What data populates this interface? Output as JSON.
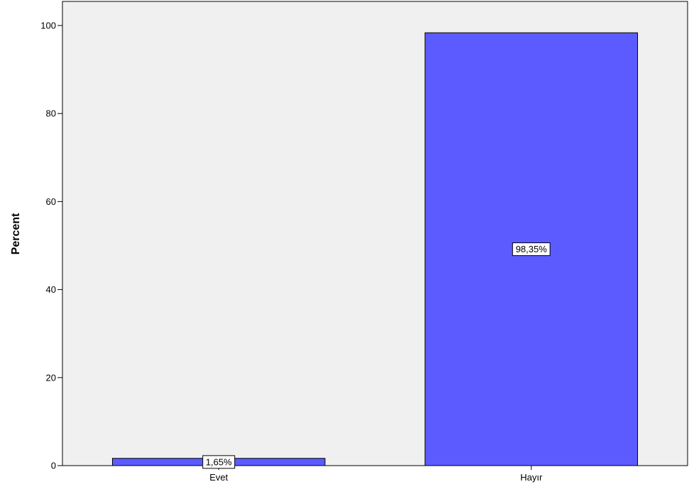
{
  "chart_data": {
    "type": "bar",
    "categories": [
      "Evet",
      "Hayır"
    ],
    "values": [
      1.65,
      98.35
    ],
    "data_labels": [
      "1,65%",
      "98,35%"
    ],
    "title": "",
    "xlabel": "",
    "ylabel": "Percent",
    "ylim": [
      0,
      100
    ],
    "yticks": [
      "0",
      "20",
      "40",
      "60",
      "80",
      "100"
    ],
    "grid": false,
    "legend": "none",
    "colors": {
      "bar_fill": "#5b5bff",
      "plot_background": "#f0f0f0",
      "axis": "#000000"
    }
  }
}
